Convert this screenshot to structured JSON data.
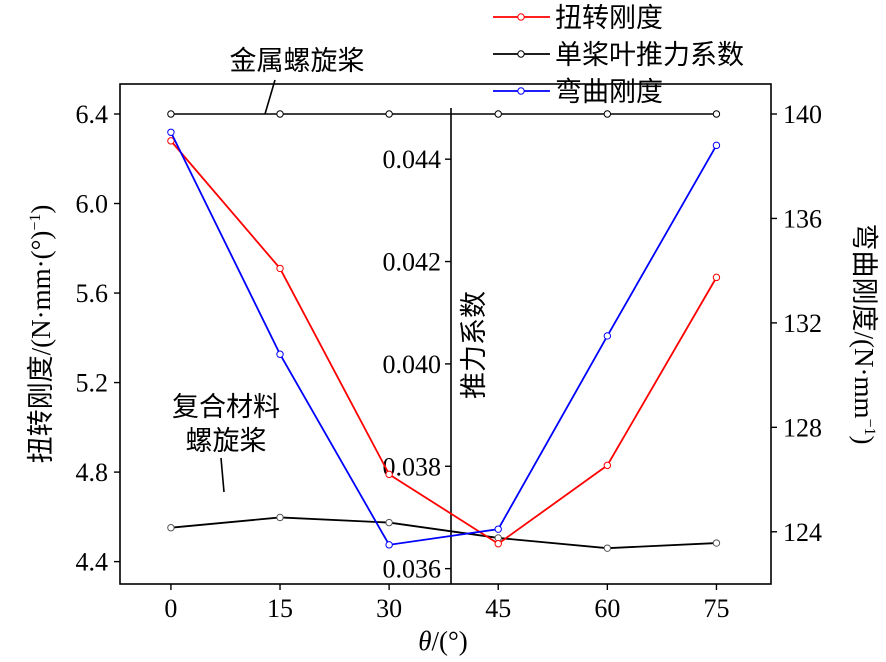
{
  "chart_data": {
    "type": "line",
    "xlabel_italic": "θ",
    "xlabel_unit": "/(°)",
    "x": [
      0,
      15,
      30,
      45,
      60,
      75
    ],
    "axes": {
      "left": {
        "label": "扭转刚度/(N·mm·(°)⁻¹)",
        "label_main": "扭转刚度/(N·mm·(°)",
        "label_sup": "−1",
        "label_close": ")",
        "ylim": [
          4.3,
          6.4
        ],
        "ticks": [
          "4.4",
          "4.8",
          "5.2",
          "5.6",
          "6.0",
          "6.4"
        ]
      },
      "right": {
        "label": "弯曲刚度/(N·mm⁻¹)",
        "label_main": "弯曲刚度/(N·mm",
        "label_sup": "−1",
        "label_close": ")",
        "ylim": [
          122,
          140
        ],
        "ticks": [
          "124",
          "128",
          "132",
          "136",
          "140"
        ]
      },
      "inner": {
        "label": "推力系数",
        "ylim": [
          0.0357,
          0.045
        ],
        "ticks": [
          "0.036",
          "0.038",
          "0.040",
          "0.042",
          "0.044"
        ]
      }
    },
    "xticks": [
      "0",
      "15",
      "30",
      "45",
      "60",
      "75"
    ],
    "series": [
      {
        "name": "扭转刚度",
        "axis": "left",
        "color": "#ff0000",
        "values": [
          6.28,
          5.71,
          4.79,
          4.48,
          4.83,
          5.67
        ]
      },
      {
        "name": "单桨叶推力系数",
        "axis": "inner",
        "color": "#000000",
        "values": [
          0.0368,
          0.037,
          0.0369,
          0.0366,
          0.0364,
          0.0365
        ]
      },
      {
        "name": "弯曲刚度",
        "axis": "right",
        "color": "#0000ff",
        "values": [
          139.3,
          130.8,
          123.5,
          124.1,
          131.5,
          138.8
        ]
      }
    ],
    "reference_line": {
      "axis": "left",
      "value": 6.4,
      "color": "#000000"
    },
    "annotations": [
      {
        "text": "金属螺旋桨"
      },
      {
        "text_lines": [
          "复合材料",
          "螺旋桨"
        ]
      }
    ],
    "legend": "top-right",
    "grid": false
  }
}
